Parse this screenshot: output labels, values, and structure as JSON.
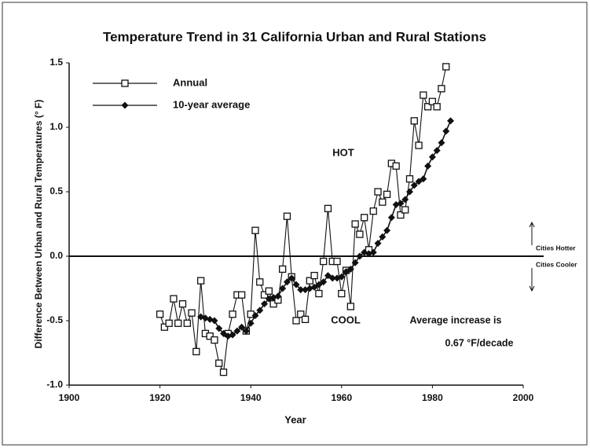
{
  "chart_data": {
    "type": "line",
    "title": "Temperature Trend in 31 California Urban and Rural Stations",
    "x_label": "Year",
    "y_label": "Difference Between Urban and Rural Temperatures (° F)",
    "xlim": [
      1900,
      2000
    ],
    "xticks": [
      1900,
      1920,
      1940,
      1960,
      1980,
      2000
    ],
    "ylim": [
      -1.0,
      1.5
    ],
    "yticks": [
      {
        "value": -1.0,
        "label": "-1.0"
      },
      -0.5,
      {
        "value": 0.0,
        "label": "0.0"
      },
      0.5,
      {
        "value": 1.0,
        "label": "1.0"
      },
      1.5
    ],
    "legend": "top-left",
    "series": [
      {
        "name": "Annual",
        "color": "#111111",
        "marker": "square",
        "x": [
          1920,
          1921,
          1922,
          1923,
          1924,
          1925,
          1926,
          1927,
          1928,
          1929,
          1930,
          1931,
          1932,
          1933,
          1934,
          1935,
          1936,
          1937,
          1938,
          1939,
          1940,
          1941,
          1942,
          1943,
          1944,
          1945,
          1946,
          1947,
          1948,
          1949,
          1950,
          1951,
          1952,
          1953,
          1954,
          1955,
          1956,
          1957,
          1958,
          1959,
          1960,
          1961,
          1962,
          1963,
          1964,
          1965,
          1966,
          1967,
          1968,
          1969,
          1970,
          1971,
          1972,
          1973,
          1974,
          1975,
          1976,
          1977,
          1978,
          1979,
          1980,
          1981,
          1982,
          1983
        ],
        "values": [
          -0.45,
          -0.55,
          -0.52,
          -0.33,
          -0.52,
          -0.37,
          -0.52,
          -0.44,
          -0.74,
          -0.19,
          -0.6,
          -0.62,
          -0.65,
          -0.83,
          -0.9,
          -0.6,
          -0.45,
          -0.3,
          -0.3,
          -0.58,
          -0.45,
          0.2,
          -0.2,
          -0.3,
          -0.27,
          -0.37,
          -0.34,
          -0.1,
          0.31,
          -0.16,
          -0.5,
          -0.45,
          -0.49,
          -0.19,
          -0.15,
          -0.29,
          -0.04,
          0.37,
          -0.04,
          -0.04,
          -0.29,
          -0.11,
          -0.39,
          0.25,
          0.17,
          0.3,
          0.05,
          0.35,
          0.5,
          0.42,
          0.48,
          0.72,
          0.7,
          0.32,
          0.36,
          0.6,
          1.05,
          0.86,
          1.25,
          1.16,
          1.2,
          1.16,
          1.3,
          1.47
        ]
      },
      {
        "name": "10-year average",
        "color": "#111111",
        "marker": "diamond",
        "x": [
          1929,
          1930,
          1931,
          1932,
          1933,
          1934,
          1935,
          1936,
          1937,
          1938,
          1939,
          1940,
          1941,
          1942,
          1943,
          1944,
          1945,
          1946,
          1947,
          1948,
          1949,
          1950,
          1951,
          1952,
          1953,
          1954,
          1955,
          1956,
          1957,
          1958,
          1959,
          1960,
          1961,
          1962,
          1963,
          1964,
          1965,
          1966,
          1967,
          1968,
          1969,
          1970,
          1971,
          1972,
          1973,
          1974,
          1975,
          1976,
          1977,
          1978,
          1979,
          1980,
          1981,
          1982,
          1983,
          1984
        ],
        "values": [
          -0.47,
          -0.48,
          -0.49,
          -0.5,
          -0.56,
          -0.6,
          -0.62,
          -0.61,
          -0.58,
          -0.55,
          -0.58,
          -0.52,
          -0.46,
          -0.42,
          -0.37,
          -0.33,
          -0.32,
          -0.31,
          -0.25,
          -0.2,
          -0.17,
          -0.22,
          -0.26,
          -0.26,
          -0.25,
          -0.24,
          -0.22,
          -0.2,
          -0.15,
          -0.17,
          -0.17,
          -0.16,
          -0.12,
          -0.1,
          -0.05,
          0.0,
          0.03,
          0.02,
          0.03,
          0.1,
          0.15,
          0.2,
          0.3,
          0.4,
          0.41,
          0.44,
          0.5,
          0.55,
          0.58,
          0.6,
          0.7,
          0.77,
          0.82,
          0.88,
          0.97,
          1.05
        ]
      }
    ],
    "annotations": [
      "HOT",
      "COOL",
      "Average increase is",
      "0.67 °F/decade",
      "Cities Hotter",
      "Cities Cooler"
    ]
  }
}
